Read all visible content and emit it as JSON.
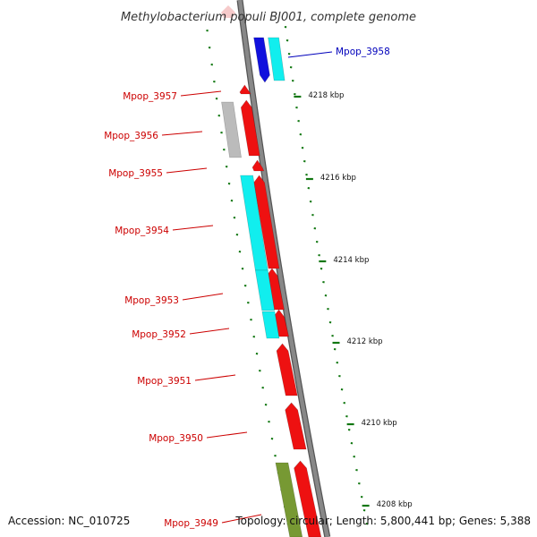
{
  "title": "Methylobacterium populi BJ001, complete genome",
  "footer": {
    "accession": "Accession: NC_010725",
    "summary": "Topology: circular; Length: 5,800,441 bp; Genes: 5,388"
  },
  "colors": {
    "red": "#ee1111",
    "cyan": "#11eeee",
    "blue": "#1111dd",
    "grey": "#bbbbbb",
    "olive": "#779933",
    "backbone": "#888888",
    "tick": "#117711",
    "label_red": "#cc0000",
    "label_blue": "#0000bb"
  },
  "genes": [
    {
      "name": "Mpop_3958",
      "color": "blue"
    },
    {
      "name": "Mpop_3957",
      "color": "red"
    },
    {
      "name": "Mpop_3956",
      "color": "red"
    },
    {
      "name": "Mpop_3955",
      "color": "red"
    },
    {
      "name": "Mpop_3954",
      "color": "red"
    },
    {
      "name": "Mpop_3953",
      "color": "red"
    },
    {
      "name": "Mpop_3952",
      "color": "red"
    },
    {
      "name": "Mpop_3951",
      "color": "red"
    },
    {
      "name": "Mpop_3950",
      "color": "red"
    },
    {
      "name": "Mpop_3949",
      "color": "red"
    }
  ],
  "scale_labels": [
    "4218 kbp",
    "4216 kbp",
    "4214 kbp",
    "4212 kbp",
    "4210 kbp",
    "4208 kbp"
  ]
}
